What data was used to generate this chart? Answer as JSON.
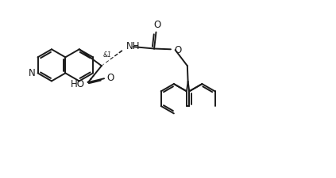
{
  "background_color": "#ffffff",
  "line_color": "#1a1a1a",
  "line_width": 1.4,
  "figsize": [
    4.23,
    2.25
  ],
  "dpi": 100,
  "xlim": [
    0,
    10.5
  ],
  "ylim": [
    0,
    5.5
  ]
}
